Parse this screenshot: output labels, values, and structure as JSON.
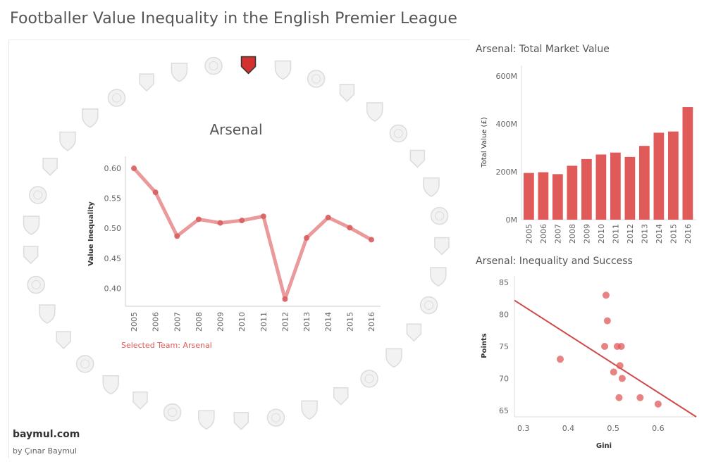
{
  "page": {
    "title": "Footballer Value Inequality in the English Premier League",
    "site": "baymul.com",
    "author": "by Çınar Baymul"
  },
  "colors": {
    "accent": "#e05a5a",
    "line": "#e6888a",
    "badge": "#dcdcdc",
    "selected_badge": "#d3312f"
  },
  "team_ring": {
    "selected": "Arsenal",
    "badges": [
      "badge-0",
      "badge-1",
      "badge-2",
      "badge-3",
      "badge-4",
      "badge-5",
      "badge-6",
      "badge-7",
      "badge-8",
      "badge-9",
      "badge-10",
      "badge-11",
      "badge-12",
      "badge-13",
      "badge-14",
      "badge-15",
      "badge-16",
      "badge-17",
      "badge-18",
      "badge-19",
      "badge-20",
      "badge-21",
      "badge-22",
      "badge-23",
      "badge-24",
      "badge-25",
      "badge-26",
      "badge-27",
      "badge-28",
      "badge-29",
      "badge-30",
      "badge-31",
      "badge-32",
      "badge-33",
      "badge-34",
      "badge-35",
      "badge-36"
    ]
  },
  "chart_data": [
    {
      "id": "inequality",
      "type": "line",
      "title": "Arsenal",
      "xlabel": "",
      "ylabel": "Value Inequality",
      "x": [
        "2005",
        "2006",
        "2007",
        "2008",
        "2009",
        "2010",
        "2011",
        "2012",
        "2013",
        "2014",
        "2015",
        "2016"
      ],
      "values": [
        0.6,
        0.56,
        0.487,
        0.515,
        0.509,
        0.513,
        0.52,
        0.382,
        0.484,
        0.518,
        0.501,
        0.481
      ],
      "ylim": [
        0.37,
        0.62
      ],
      "yticks": [
        0.4,
        0.45,
        0.5,
        0.55,
        0.6
      ],
      "ytick_labels": [
        "0.40",
        "0.45",
        "0.50",
        "0.55",
        "0.60"
      ],
      "note": "Selected Team: Arsenal"
    },
    {
      "id": "market-value",
      "type": "bar",
      "title": "Arsenal: Total Market Value",
      "ylabel": "Total Value (£)",
      "categories": [
        "2005",
        "2006",
        "2007",
        "2008",
        "2009",
        "2010",
        "2011",
        "2012",
        "2013",
        "2014",
        "2015",
        "2016"
      ],
      "values": [
        195,
        198,
        190,
        225,
        253,
        272,
        280,
        262,
        308,
        363,
        368,
        470
      ],
      "ylim": [
        0,
        620
      ],
      "yticks": [
        0,
        200,
        400,
        600
      ],
      "ytick_labels": [
        "0M",
        "200M",
        "400M",
        "600M"
      ]
    },
    {
      "id": "success",
      "type": "scatter",
      "title": "Arsenal: Inequality and Success",
      "xlabel": "Gini",
      "ylabel": "Points",
      "x": [
        0.382,
        0.484,
        0.487,
        0.481,
        0.501,
        0.509,
        0.513,
        0.515,
        0.518,
        0.52,
        0.56,
        0.6
      ],
      "y": [
        73,
        83,
        79,
        75,
        71,
        75,
        67,
        72,
        75,
        70,
        67,
        66
      ],
      "xlim": [
        0.28,
        0.685
      ],
      "ylim": [
        64,
        86
      ],
      "xticks": [
        0.3,
        0.4,
        0.5,
        0.6
      ],
      "xtick_labels": [
        "0.3",
        "0.4",
        "0.5",
        "0.6"
      ],
      "yticks": [
        65,
        70,
        75,
        80,
        85
      ],
      "ytick_labels": [
        "65",
        "70",
        "75",
        "80",
        "85"
      ],
      "trend": {
        "x": [
          0.28,
          0.685
        ],
        "y": [
          82.2,
          64.0
        ]
      }
    }
  ]
}
